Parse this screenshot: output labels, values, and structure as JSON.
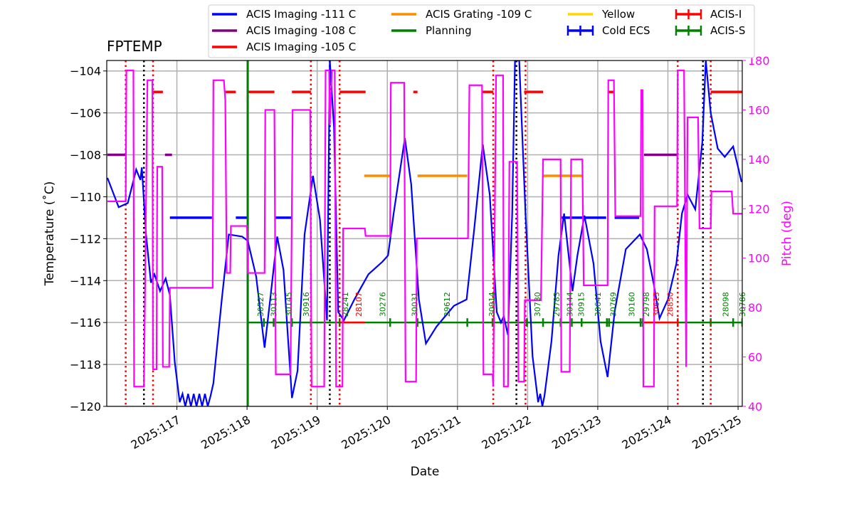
{
  "chart_data": {
    "type": "line",
    "title": "FPTEMP",
    "xlabel": "Date",
    "ylabel": "Temperature ($^\\circ$C)",
    "ylabel_display": "Temperature (˚C)",
    "y2label": "Pitch (deg)",
    "xlim": [
      116.0,
      125.06
    ],
    "ylim": [
      -120,
      -103.5
    ],
    "y2lim": [
      40,
      180
    ],
    "xticks": [
      117,
      118,
      119,
      120,
      121,
      122,
      123,
      124,
      125
    ],
    "xtick_labels": [
      "2025:117",
      "2025:118",
      "2025:119",
      "2025:120",
      "2025:121",
      "2025:122",
      "2025:123",
      "2025:124",
      "2025:125"
    ],
    "yticks": [
      -120,
      -118,
      -116,
      -114,
      -112,
      -110,
      -108,
      -106,
      -104
    ],
    "ytick_labels": [
      "−120",
      "−118",
      "−116",
      "−114",
      "−112",
      "−110",
      "−108",
      "−106",
      "−104"
    ],
    "y2ticks": [
      40,
      60,
      80,
      100,
      120,
      140,
      160,
      180
    ],
    "y2tick_labels": [
      "40",
      "60",
      "80",
      "100",
      "120",
      "140",
      "160",
      "180"
    ],
    "grid": true,
    "legend_placement": "top (above plot)",
    "colors": {
      "temp": "#0000ff",
      "pitch": "#ff00ff",
      "purple": "#800080",
      "red": "#ff0000",
      "orange": "#ff8c00",
      "green": "#008000",
      "yellow": "#ffd700",
      "black": "#000000"
    },
    "legend": [
      {
        "label": "ACIS Imaging -111 C",
        "color": "#0000ff",
        "style": "line"
      },
      {
        "label": "ACIS Imaging -108 C",
        "color": "#800080",
        "style": "line"
      },
      {
        "label": "ACIS Imaging -105 C",
        "color": "#ff0000",
        "style": "line"
      },
      {
        "label": "ACIS Grating -109 C",
        "color": "#ff8c00",
        "style": "line"
      },
      {
        "label": "Planning",
        "color": "#008000",
        "style": "line"
      },
      {
        "label": "Yellow",
        "color": "#ffd700",
        "style": "line"
      },
      {
        "label": "Cold ECS",
        "color": "#0000ff",
        "style": "errorbar"
      },
      {
        "label": "ACIS-I",
        "color": "#ff0000",
        "style": "errorbar"
      },
      {
        "label": "ACIS-S",
        "color": "#008000",
        "style": "errorbar"
      }
    ],
    "temperature": [
      [
        116.01,
        -109.1
      ],
      [
        116.17,
        -110.5
      ],
      [
        116.3,
        -110.3
      ],
      [
        116.42,
        -108.7
      ],
      [
        116.48,
        -109.2
      ],
      [
        116.5,
        -108.6
      ],
      [
        116.56,
        -111.8
      ],
      [
        116.63,
        -114.1
      ],
      [
        116.68,
        -113.7
      ],
      [
        116.76,
        -114.5
      ],
      [
        116.84,
        -113.9
      ],
      [
        116.9,
        -114.7
      ],
      [
        116.97,
        -117.9
      ],
      [
        117.04,
        -119.8
      ],
      [
        117.08,
        -119.4
      ],
      [
        117.12,
        -120
      ],
      [
        117.16,
        -119.4
      ],
      [
        117.2,
        -120
      ],
      [
        117.24,
        -119.4
      ],
      [
        117.28,
        -120
      ],
      [
        117.32,
        -119.4
      ],
      [
        117.36,
        -120
      ],
      [
        117.4,
        -119.4
      ],
      [
        117.44,
        -120
      ],
      [
        117.48,
        -119.5
      ],
      [
        117.52,
        -118.9
      ],
      [
        117.64,
        -114.9
      ],
      [
        117.74,
        -111.8
      ],
      [
        117.93,
        -111.9
      ],
      [
        118.01,
        -112.1
      ],
      [
        118.13,
        -113.8
      ],
      [
        118.25,
        -117.2
      ],
      [
        118.33,
        -114.9
      ],
      [
        118.43,
        -111.9
      ],
      [
        118.52,
        -113.5
      ],
      [
        118.64,
        -119.6
      ],
      [
        118.72,
        -118.3
      ],
      [
        118.82,
        -111.8
      ],
      [
        118.94,
        -109.0
      ],
      [
        119.04,
        -111.1
      ],
      [
        119.14,
        -115.9
      ],
      [
        119.18,
        -103.5
      ],
      [
        119.24,
        -106.7
      ],
      [
        119.3,
        -115.5
      ],
      [
        119.38,
        -115.9
      ],
      [
        119.53,
        -114.9
      ],
      [
        119.73,
        -113.7
      ],
      [
        119.93,
        -113.1
      ],
      [
        120.01,
        -112.8
      ],
      [
        120.09,
        -110.8
      ],
      [
        120.25,
        -107.2
      ],
      [
        120.34,
        -109.4
      ],
      [
        120.45,
        -114.9
      ],
      [
        120.55,
        -117.0
      ],
      [
        120.7,
        -116.2
      ],
      [
        120.95,
        -115.2
      ],
      [
        121.13,
        -114.9
      ],
      [
        121.24,
        -111.5
      ],
      [
        121.36,
        -107.5
      ],
      [
        121.46,
        -109.9
      ],
      [
        121.56,
        -115.5
      ],
      [
        121.62,
        -116.0
      ],
      [
        121.66,
        -115.7
      ],
      [
        121.72,
        -116.6
      ],
      [
        121.78,
        -110.8
      ],
      [
        121.82,
        -103.5
      ],
      [
        121.88,
        -103.5
      ],
      [
        121.97,
        -110.8
      ],
      [
        122.07,
        -117.6
      ],
      [
        122.15,
        -119.8
      ],
      [
        122.18,
        -119.4
      ],
      [
        122.21,
        -120
      ],
      [
        122.24,
        -119.5
      ],
      [
        122.34,
        -116.9
      ],
      [
        122.44,
        -112.8
      ],
      [
        122.52,
        -110.8
      ],
      [
        122.64,
        -114.5
      ],
      [
        122.71,
        -112.8
      ],
      [
        122.81,
        -110.9
      ],
      [
        122.94,
        -113.2
      ],
      [
        123.04,
        -116.9
      ],
      [
        123.14,
        -118.6
      ],
      [
        123.24,
        -115.5
      ],
      [
        123.4,
        -112.5
      ],
      [
        123.6,
        -111.8
      ],
      [
        123.7,
        -112.5
      ],
      [
        123.8,
        -114.2
      ],
      [
        123.88,
        -115.8
      ],
      [
        124.0,
        -114.9
      ],
      [
        124.12,
        -113.2
      ],
      [
        124.2,
        -110.8
      ],
      [
        124.28,
        -109.9
      ],
      [
        124.39,
        -110.6
      ],
      [
        124.49,
        -107.4
      ],
      [
        124.54,
        -103.5
      ],
      [
        124.61,
        -106.0
      ],
      [
        124.71,
        -107.7
      ],
      [
        124.81,
        -108.1
      ],
      [
        124.93,
        -107.6
      ],
      [
        125.05,
        -109.3
      ]
    ],
    "pitch": [
      [
        116.01,
        123
      ],
      [
        116.27,
        123
      ],
      [
        116.28,
        176
      ],
      [
        116.38,
        176
      ],
      [
        116.39,
        48
      ],
      [
        116.53,
        48
      ],
      [
        116.58,
        172
      ],
      [
        116.65,
        172
      ],
      [
        116.66,
        55
      ],
      [
        116.71,
        55
      ],
      [
        116.72,
        137
      ],
      [
        116.79,
        137
      ],
      [
        116.8,
        56
      ],
      [
        116.89,
        56
      ],
      [
        116.9,
        88
      ],
      [
        117.51,
        88
      ],
      [
        117.52,
        172
      ],
      [
        117.67,
        172
      ],
      [
        117.69,
        164
      ],
      [
        117.71,
        94
      ],
      [
        117.76,
        94
      ],
      [
        117.77,
        113
      ],
      [
        118.0,
        113
      ],
      [
        118.01,
        94
      ],
      [
        118.25,
        94
      ],
      [
        118.26,
        160
      ],
      [
        118.39,
        160
      ],
      [
        118.41,
        53
      ],
      [
        118.62,
        53
      ],
      [
        118.65,
        160
      ],
      [
        118.9,
        160
      ],
      [
        118.92,
        48
      ],
      [
        119.1,
        48
      ],
      [
        119.12,
        176
      ],
      [
        119.17,
        176
      ],
      [
        119.18,
        154
      ],
      [
        119.21,
        176
      ],
      [
        119.25,
        176
      ],
      [
        119.27,
        48
      ],
      [
        119.36,
        48
      ],
      [
        119.37,
        112
      ],
      [
        119.68,
        112
      ],
      [
        119.69,
        109
      ],
      [
        120.04,
        109
      ],
      [
        120.05,
        171
      ],
      [
        120.24,
        171
      ],
      [
        120.26,
        50
      ],
      [
        120.41,
        50
      ],
      [
        120.42,
        108
      ],
      [
        121.15,
        108
      ],
      [
        121.17,
        170
      ],
      [
        121.35,
        170
      ],
      [
        121.37,
        53
      ],
      [
        121.5,
        53
      ],
      [
        121.51,
        48
      ],
      [
        121.55,
        174
      ],
      [
        121.65,
        174
      ],
      [
        121.66,
        48
      ],
      [
        121.72,
        48
      ],
      [
        121.74,
        139
      ],
      [
        121.85,
        139
      ],
      [
        121.87,
        50
      ],
      [
        121.95,
        50
      ],
      [
        121.96,
        83
      ],
      [
        122.19,
        83
      ],
      [
        122.22,
        140
      ],
      [
        122.47,
        140
      ],
      [
        122.48,
        54
      ],
      [
        122.6,
        54
      ],
      [
        122.62,
        140
      ],
      [
        122.78,
        140
      ],
      [
        122.8,
        89
      ],
      [
        123.14,
        89
      ],
      [
        123.15,
        172
      ],
      [
        123.23,
        172
      ],
      [
        123.25,
        117
      ],
      [
        123.61,
        117
      ],
      [
        123.62,
        168
      ],
      [
        123.64,
        168
      ],
      [
        123.65,
        48
      ],
      [
        123.8,
        48
      ],
      [
        123.81,
        121
      ],
      [
        124.13,
        121
      ],
      [
        124.14,
        176
      ],
      [
        124.23,
        176
      ],
      [
        124.26,
        56
      ],
      [
        124.28,
        157
      ],
      [
        124.43,
        157
      ],
      [
        124.45,
        112
      ],
      [
        124.61,
        112
      ],
      [
        124.62,
        127
      ],
      [
        124.91,
        127
      ],
      [
        124.93,
        118
      ],
      [
        125.06,
        118
      ]
    ],
    "state_segments": [
      {
        "color": "#800080",
        "value": -108,
        "ranges": [
          [
            116.01,
            116.28
          ],
          [
            116.83,
            116.93
          ],
          [
            123.66,
            124.13
          ]
        ]
      },
      {
        "color": "#ff0000",
        "value": -105,
        "ranges": [
          [
            116.65,
            116.8
          ],
          [
            117.69,
            117.84
          ],
          [
            118.0,
            118.39
          ],
          [
            118.64,
            118.91
          ],
          [
            119.32,
            119.69
          ],
          [
            120.37,
            120.43
          ],
          [
            121.35,
            121.51
          ],
          [
            121.95,
            122.22
          ],
          [
            123.14,
            123.24
          ],
          [
            124.61,
            125.06
          ]
        ]
      },
      {
        "color": "#0000ff",
        "value": -111,
        "ranges": [
          [
            116.9,
            117.5
          ],
          [
            117.84,
            118.01
          ],
          [
            118.41,
            118.64
          ],
          [
            122.47,
            123.12
          ],
          [
            123.24,
            123.59
          ]
        ]
      },
      {
        "color": "#ff8c00",
        "value": -109,
        "ranges": [
          [
            119.67,
            120.04
          ],
          [
            120.43,
            121.14
          ],
          [
            122.22,
            122.78
          ]
        ]
      }
    ],
    "planning_line": 118.01,
    "acis_s": {
      "value": -116,
      "range": [
        118.01,
        125.06
      ],
      "markers": [
        118.01,
        118.24,
        118.38,
        118.64,
        118.91,
        119.32,
        120.04,
        120.43,
        121.14,
        121.5,
        121.99,
        122.22,
        122.47,
        122.63,
        122.77,
        123.13,
        123.16,
        123.61,
        123.64,
        124.14,
        124.61,
        124.93,
        125.06
      ]
    },
    "acis_i": {
      "value": -116,
      "ranges": [
        [
          119.32,
          119.68
        ],
        [
          123.64,
          124.14
        ]
      ]
    },
    "vlines_red": [
      116.27,
      116.66,
      118.91,
      119.32,
      121.51,
      121.97,
      124.14,
      124.61
    ],
    "vlines_black": [
      116.53,
      119.18,
      121.84,
      124.5
    ],
    "obsids": [
      {
        "label": "30527",
        "day": 118.19,
        "color": "#008000"
      },
      {
        "label": "30113",
        "day": 118.38,
        "color": "#008000"
      },
      {
        "label": "30145",
        "day": 118.59,
        "color": "#008000"
      },
      {
        "label": "30916",
        "day": 118.84,
        "color": "#008000"
      },
      {
        "label": "28241",
        "day": 119.4,
        "color": "#008000"
      },
      {
        "label": "28107",
        "day": 119.59,
        "color": "#ff0000"
      },
      {
        "label": "30276",
        "day": 119.93,
        "color": "#008000"
      },
      {
        "label": "30031",
        "day": 120.39,
        "color": "#008000"
      },
      {
        "label": "29612",
        "day": 120.85,
        "color": "#008000"
      },
      {
        "label": "30914",
        "day": 121.49,
        "color": "#008000"
      },
      {
        "label": "30730",
        "day": 122.14,
        "color": "#008000"
      },
      {
        "label": "29783",
        "day": 122.41,
        "color": "#008000"
      },
      {
        "label": "30144",
        "day": 122.6,
        "color": "#008000"
      },
      {
        "label": "30915",
        "day": 122.76,
        "color": "#008000"
      },
      {
        "label": "30641",
        "day": 123.0,
        "color": "#008000"
      },
      {
        "label": "30769",
        "day": 123.22,
        "color": "#008000"
      },
      {
        "label": "30160",
        "day": 123.48,
        "color": "#008000"
      },
      {
        "label": "29798",
        "day": 123.69,
        "color": "#008000"
      },
      {
        "label": "30613",
        "day": 123.74,
        "color": "#ff0000"
      },
      {
        "label": "28850",
        "day": 124.03,
        "color": "#ff0000"
      },
      {
        "label": "28098",
        "day": 124.82,
        "color": "#008000"
      },
      {
        "label": "30786",
        "day": 125.06,
        "color": "#008000"
      }
    ]
  }
}
